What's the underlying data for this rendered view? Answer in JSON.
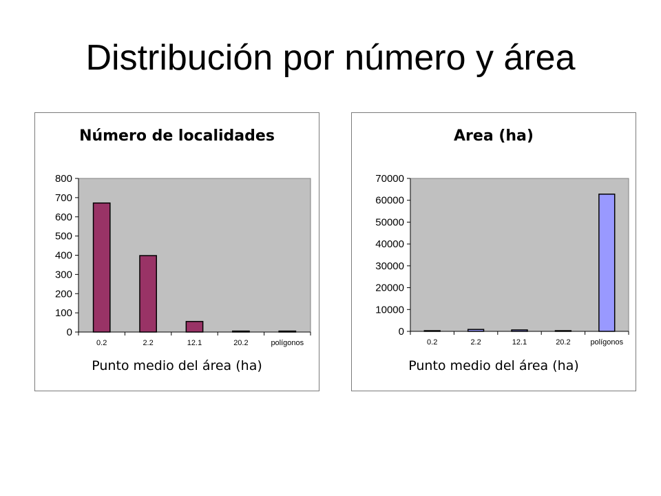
{
  "slide": {
    "title": "Distribución por número y área"
  },
  "chart_data": [
    {
      "type": "bar",
      "title": "Número de localidades",
      "xlabel": "Punto medio del área (ha)",
      "ylabel": "",
      "categories": [
        "0.2",
        "2.2",
        "12.1",
        "20.2",
        "polígonos"
      ],
      "values": [
        672,
        398,
        55,
        5,
        5
      ],
      "ylim": [
        0,
        800
      ],
      "yticks": [
        0,
        100,
        200,
        300,
        400,
        500,
        600,
        700,
        800
      ],
      "bar_color": "#993366",
      "plot_bg": "#c0c0c0",
      "grid": false,
      "legend": "none"
    },
    {
      "type": "bar",
      "title": "Area (ha)",
      "xlabel": "Punto medio del área (ha)",
      "ylabel": "",
      "categories": [
        "0.2",
        "2.2",
        "12.1",
        "20.2",
        "polígonos"
      ],
      "values": [
        100,
        880,
        660,
        100,
        62800
      ],
      "ylim": [
        0,
        70000
      ],
      "yticks": [
        0,
        10000,
        20000,
        30000,
        40000,
        50000,
        60000,
        70000
      ],
      "bar_color": "#9999ff",
      "plot_bg": "#c0c0c0",
      "grid": false,
      "legend": "none"
    }
  ]
}
